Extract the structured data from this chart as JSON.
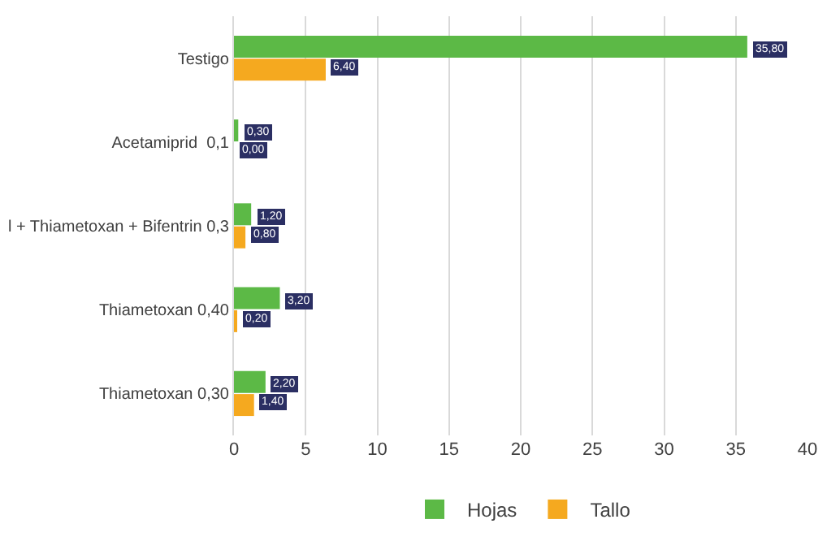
{
  "chart_data": {
    "type": "bar",
    "orientation": "horizontal",
    "categories": [
      "Testigo",
      "Acetamiprid  0,1",
      "l + Thiametoxan + Bifentrin 0,3",
      "Thiametoxan 0,40",
      "Thiametoxan 0,30"
    ],
    "series": [
      {
        "name": "Hojas",
        "color": "#5cb946",
        "values": [
          35.8,
          0.3,
          1.2,
          3.2,
          2.2
        ],
        "value_labels": [
          "35,80",
          "0,30",
          "1,20",
          "3,20",
          "2,20"
        ]
      },
      {
        "name": "Tallo",
        "color": "#f5a91f",
        "values": [
          6.4,
          0.0,
          0.8,
          0.2,
          1.4
        ],
        "value_labels": [
          "6,40",
          "0,00",
          "0,80",
          "0,20",
          "1,40"
        ]
      }
    ],
    "xlim": [
      0,
      40
    ],
    "xticks": [
      0,
      5,
      10,
      15,
      20,
      25,
      30,
      35,
      40
    ],
    "grid": "x",
    "legend": "bottom"
  }
}
